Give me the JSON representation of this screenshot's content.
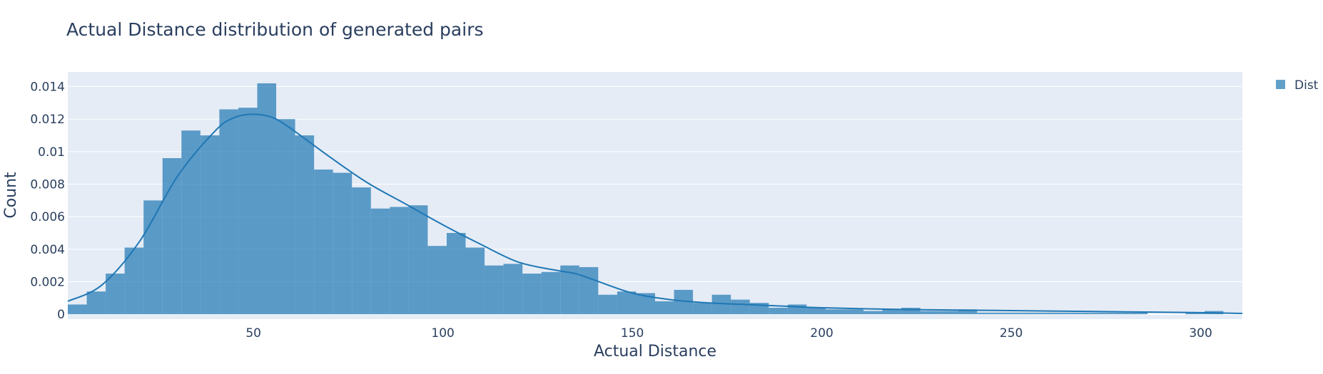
{
  "chart_data": {
    "type": "bar",
    "title": "Actual Distance distribution of generated pairs",
    "xlabel": "Actual Distance",
    "ylabel": "Count",
    "xlim": [
      1,
      311
    ],
    "ylim": [
      -0.0003,
      0.0149
    ],
    "x_ticks": [
      50,
      100,
      150,
      200,
      250,
      300
    ],
    "x_tick_labels": [
      "50",
      "100",
      "150",
      "200",
      "250",
      "300"
    ],
    "y_ticks": [
      0,
      0.002,
      0.004,
      0.006,
      0.008,
      0.01,
      0.012,
      0.014
    ],
    "y_tick_labels": [
      "0",
      "0.002",
      "0.004",
      "0.006",
      "0.008",
      "0.01",
      "0.012",
      "0.014"
    ],
    "grid": true,
    "legend": {
      "position": "top-right",
      "entries": [
        "Dist"
      ]
    },
    "colors": {
      "bar": "#1f77b4",
      "curve": "#1f77b4",
      "plot_bg": "#e5ecf6",
      "grid": "#ffffff",
      "text": "#2a3f5f"
    },
    "series": [
      {
        "name": "Dist",
        "type": "histogram",
        "bin_width": 5,
        "bin_start": 1,
        "values": [
          0.0006,
          0.0014,
          0.0025,
          0.0041,
          0.007,
          0.0096,
          0.0113,
          0.011,
          0.0126,
          0.0127,
          0.0142,
          0.012,
          0.011,
          0.0089,
          0.0087,
          0.0078,
          0.0065,
          0.0066,
          0.0067,
          0.0042,
          0.005,
          0.0041,
          0.003,
          0.0031,
          0.0025,
          0.0026,
          0.003,
          0.0029,
          0.0012,
          0.0014,
          0.0013,
          0.0008,
          0.0015,
          0.0007,
          0.0012,
          0.0009,
          0.0007,
          0.0004,
          0.0006,
          0.0004,
          0.0003,
          0.0003,
          0.0002,
          0.0003,
          0.0004,
          0.0002,
          0.0002,
          0.0003,
          0.0001,
          0.0001,
          0.0001,
          0.0001,
          0.0001,
          0.0001,
          0.0001,
          0.0001,
          0.0001,
          0.0,
          0.0,
          0.0001,
          0.0002,
          0.0,
          0.0,
          0.0001,
          0.0
        ]
      },
      {
        "name": "Dist",
        "type": "kde",
        "x": [
          1,
          10,
          20,
          30,
          40,
          45,
          50,
          55,
          60,
          70,
          80,
          90,
          100,
          110,
          120,
          130,
          135,
          140,
          150,
          160,
          170,
          180,
          190,
          200,
          220,
          240,
          260,
          280,
          300,
          311
        ],
        "values": [
          0.0008,
          0.0018,
          0.0045,
          0.0085,
          0.0113,
          0.0121,
          0.0123,
          0.0121,
          0.0114,
          0.0097,
          0.0081,
          0.0068,
          0.0055,
          0.0043,
          0.0032,
          0.0027,
          0.0025,
          0.0021,
          0.0013,
          0.0009,
          0.0007,
          0.0006,
          0.0005,
          0.0004,
          0.0003,
          0.00025,
          0.0002,
          0.00015,
          0.0001,
          5e-05
        ]
      }
    ]
  }
}
